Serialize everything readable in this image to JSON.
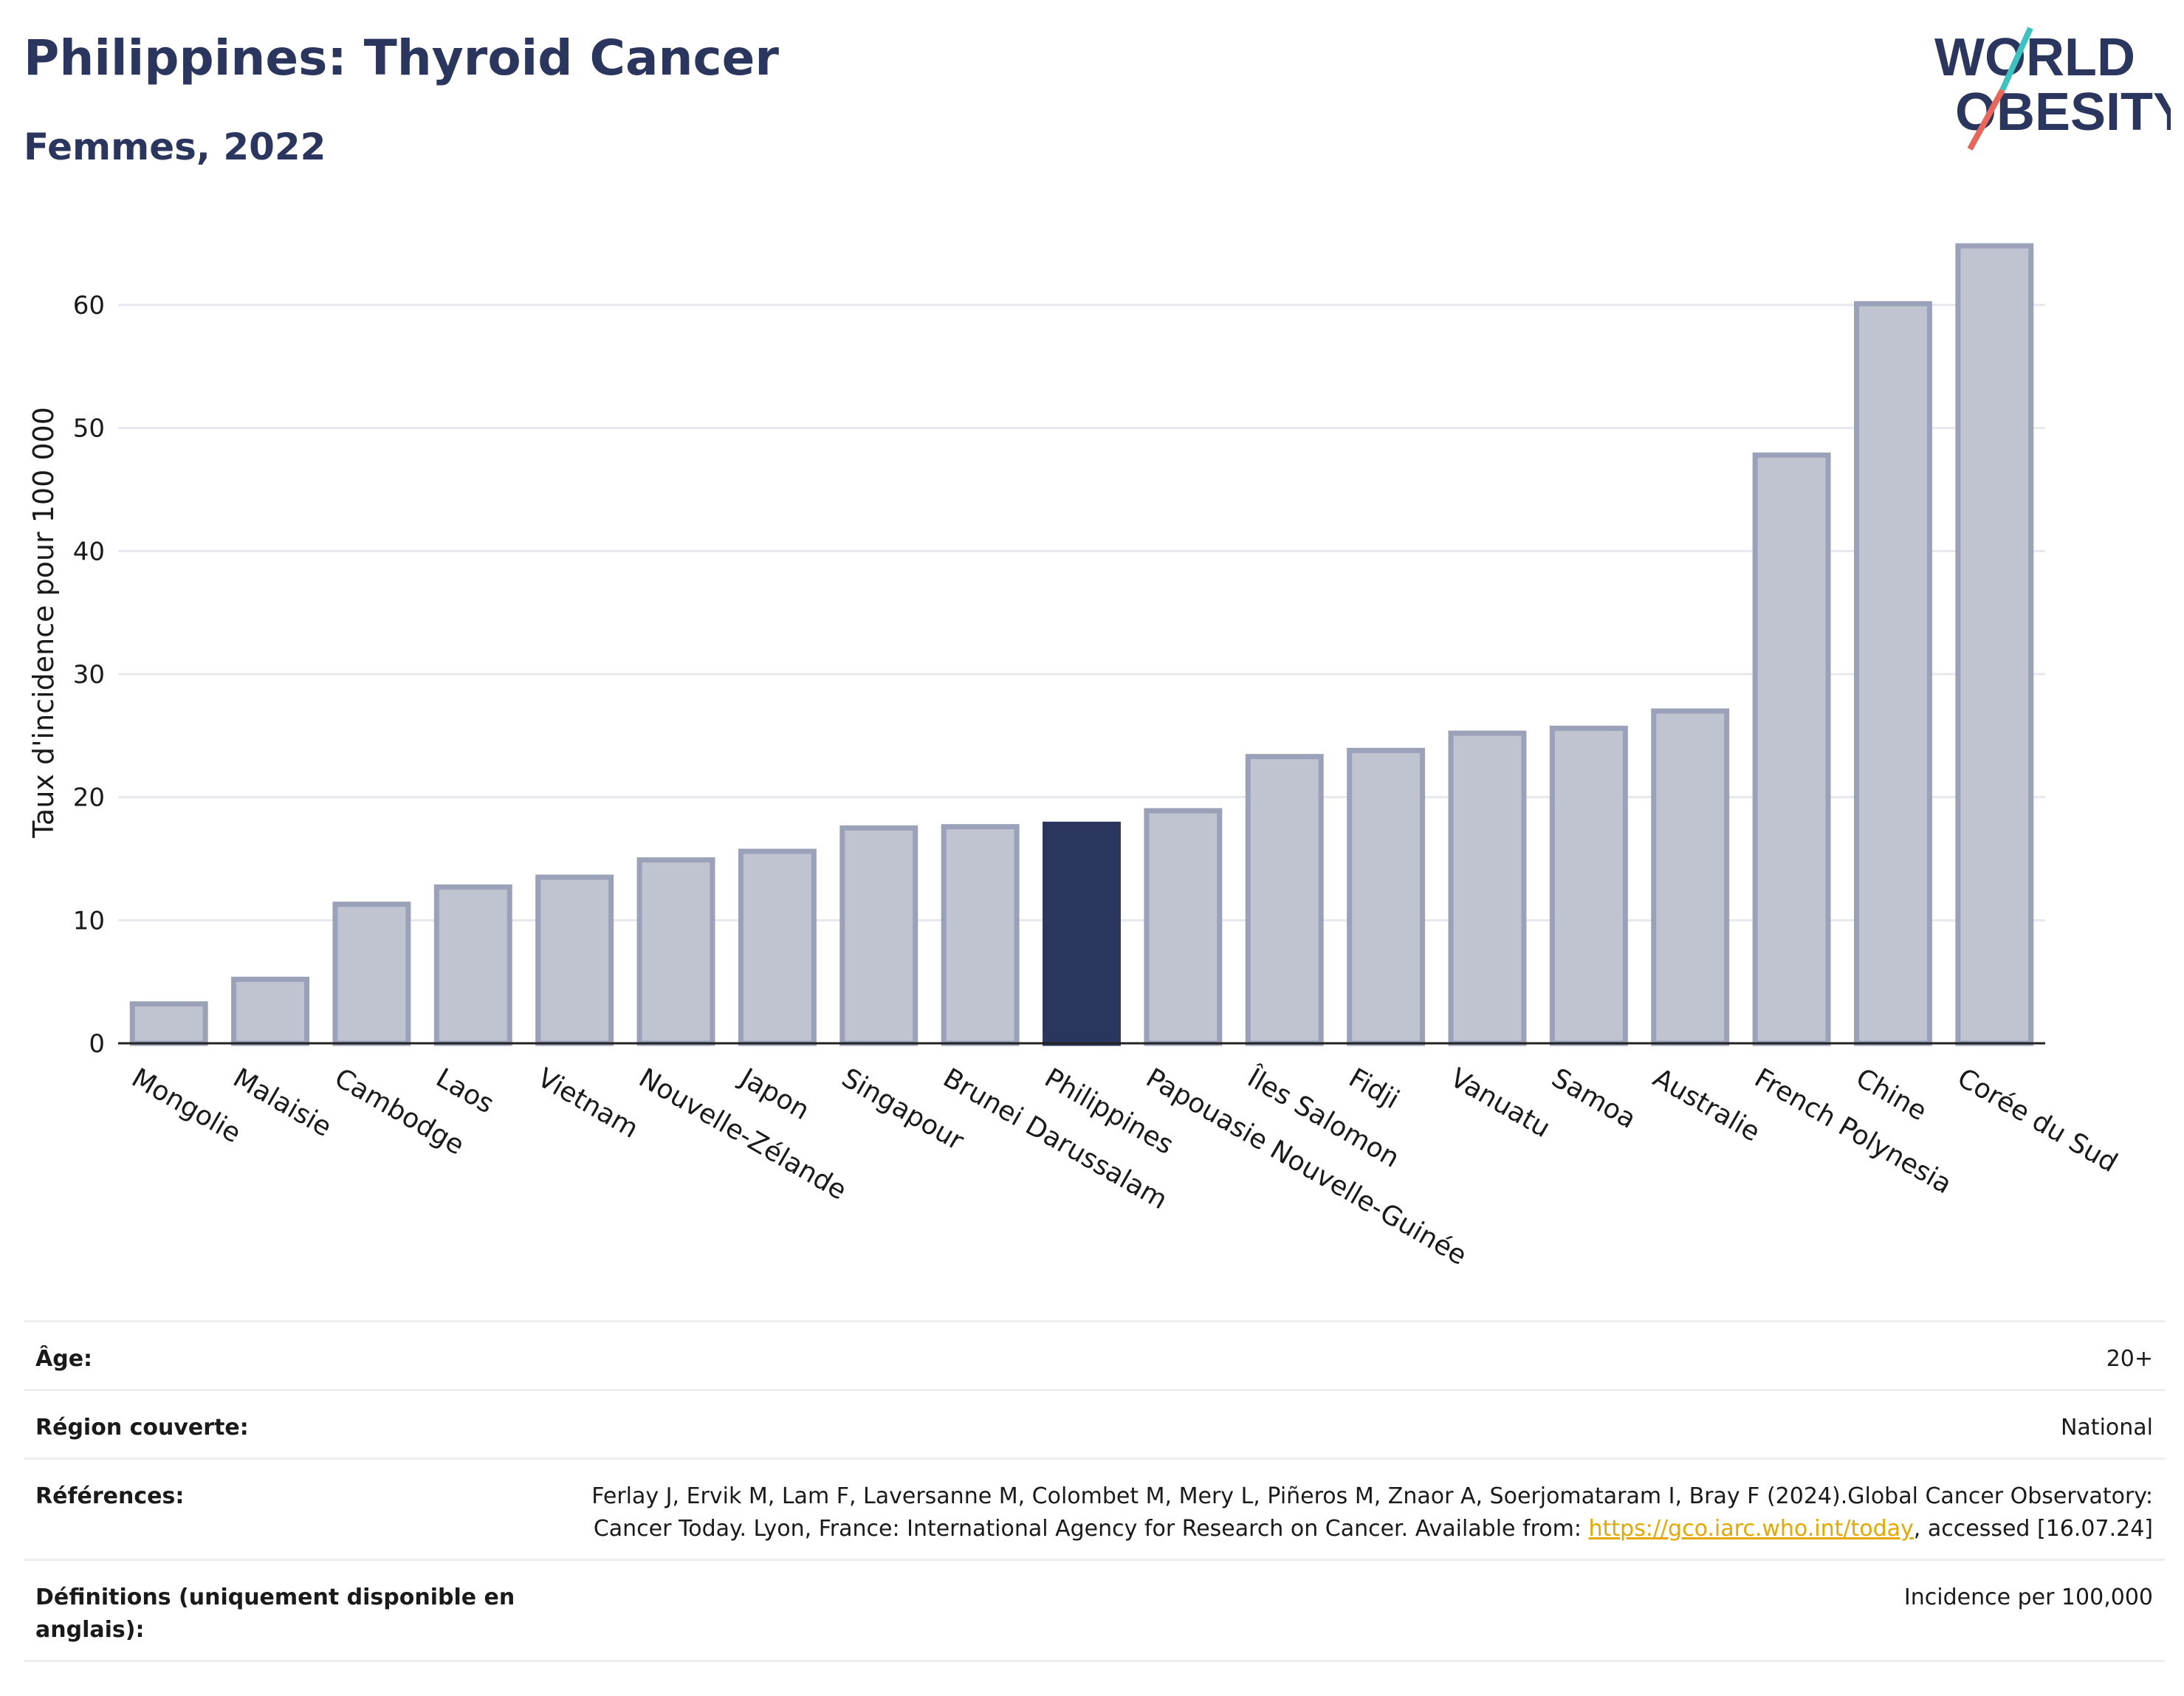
{
  "header": {
    "title": "Philippines: Thyroid Cancer",
    "subtitle": "Femmes, 2022"
  },
  "logo": {
    "line1": "WORLD",
    "line2": "OBESITY",
    "colors": {
      "text": "#2b365f",
      "slash_teal": "#3cc3c0",
      "slash_red": "#e8675a"
    }
  },
  "colors": {
    "bar_default": "#c0c4d1",
    "bar_border": "#9aa1b8",
    "bar_highlight": "#2b365f",
    "grid": "#e6e8ee",
    "axis": "#222222"
  },
  "chart_data": {
    "type": "bar",
    "ylabel": "Taux d'incidence pour 100 000",
    "ylim": [
      0,
      66
    ],
    "yticks": [
      0,
      10,
      20,
      30,
      40,
      50,
      60
    ],
    "grid": true,
    "highlight": "Philippines",
    "categories": [
      "Mongolie",
      "Malaisie",
      "Cambodge",
      "Laos",
      "Vietnam",
      "Nouvelle-Zélande",
      "Japon",
      "Singapour",
      "Brunei Darussalam",
      "Philippines",
      "Papouasie Nouvelle-Guinée",
      "Îles Salomon",
      "Fidji",
      "Vanuatu",
      "Samoa",
      "Australie",
      "French Polynesia",
      "Chine",
      "Corée du Sud"
    ],
    "values": [
      3.2,
      5.2,
      11.3,
      12.7,
      13.5,
      14.9,
      15.6,
      17.5,
      17.6,
      17.8,
      18.9,
      23.3,
      23.8,
      25.2,
      25.6,
      27.0,
      47.8,
      60.1,
      64.8
    ]
  },
  "meta": {
    "age_label": "Âge:",
    "age_value": "20+",
    "region_label": "Région couverte:",
    "region_value": "National",
    "refs_label": "Références:",
    "refs_text1": "Ferlay J, Ervik M, Lam F, Laversanne M, Colombet M, Mery L, Piñeros M, Znaor A, Soerjomataram I, Bray F (2024).Global Cancer Observatory: Cancer Today. Lyon, France: International Agency for Research on Cancer. Available from: ",
    "refs_link": "https://gco.iarc.who.int/today",
    "refs_text2": ", accessed [16.07.24]",
    "defs_label": "Définitions (uniquement disponible en anglais):",
    "defs_value": "Incidence per 100,000"
  }
}
